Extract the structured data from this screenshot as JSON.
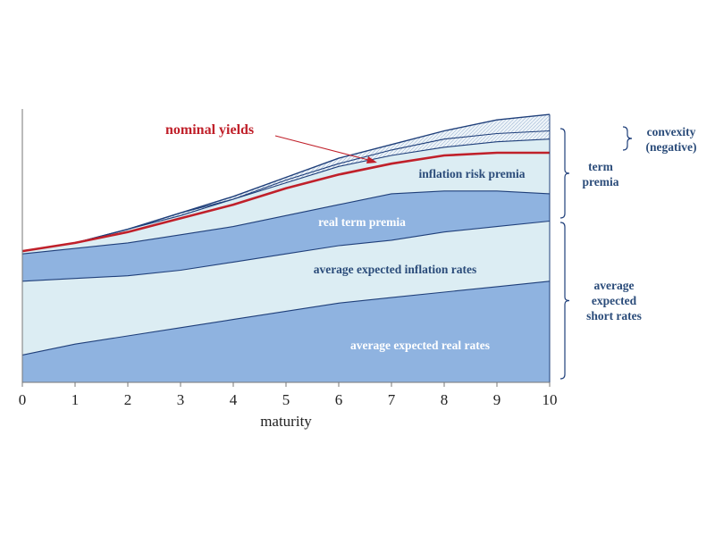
{
  "chart_data": {
    "type": "area",
    "xlabel": "maturity",
    "x": [
      0,
      1,
      2,
      3,
      4,
      5,
      6,
      7,
      8,
      9,
      10
    ],
    "ylim": [
      0,
      1
    ],
    "grid": false,
    "series": [
      {
        "name": "average expected real rates",
        "fill": "#8fb3e0",
        "values": [
          0.1,
          0.14,
          0.17,
          0.2,
          0.23,
          0.26,
          0.29,
          0.31,
          0.33,
          0.35,
          0.37
        ]
      },
      {
        "name": "average expected inflation rates",
        "fill": "#dcedf3",
        "values": [
          0.37,
          0.38,
          0.39,
          0.41,
          0.44,
          0.47,
          0.5,
          0.52,
          0.55,
          0.57,
          0.59
        ]
      },
      {
        "name": "real term premia",
        "fill": "#8fb3e0",
        "values": [
          0.47,
          0.49,
          0.51,
          0.54,
          0.57,
          0.61,
          0.65,
          0.69,
          0.7,
          0.7,
          0.69
        ]
      },
      {
        "name": "inflation risk premia",
        "fill": "#dcedf3",
        "values": [
          0.48,
          0.51,
          0.56,
          0.61,
          0.67,
          0.73,
          0.79,
          0.83,
          0.86,
          0.88,
          0.89
        ]
      },
      {
        "name": "convexity (negative)",
        "fill": "#eef4f9",
        "values": [
          0.48,
          0.51,
          0.56,
          0.62,
          0.68,
          0.75,
          0.82,
          0.87,
          0.92,
          0.96,
          0.98
        ]
      }
    ],
    "nominal_yields": {
      "name": "nominal yields",
      "color": "#c0202a",
      "values": [
        0.48,
        0.51,
        0.55,
        0.6,
        0.65,
        0.71,
        0.76,
        0.8,
        0.83,
        0.84,
        0.84
      ]
    },
    "extra_line": [
      0.48,
      0.51,
      0.56,
      0.62,
      0.67,
      0.74,
      0.8,
      0.85,
      0.89,
      0.91,
      0.92
    ],
    "series_labels": [
      "average expected real rates",
      "average expected inflation rates",
      "real term premia",
      "inflation risk premia"
    ],
    "brackets": {
      "convexity": [
        "convexity",
        "(negative)"
      ],
      "term_premia": [
        "term",
        "premia"
      ],
      "short_rates": [
        "average",
        "expected",
        "short rates"
      ]
    },
    "colors": {
      "dark_fill": "#8fb3e0",
      "light_fill": "#dcedf3",
      "outline": "#1f3f7a",
      "label_light": "#ffffff",
      "label_dark": "#2b4c7a",
      "bracket": "#1f3f7a",
      "nominal": "#c0202a"
    }
  }
}
